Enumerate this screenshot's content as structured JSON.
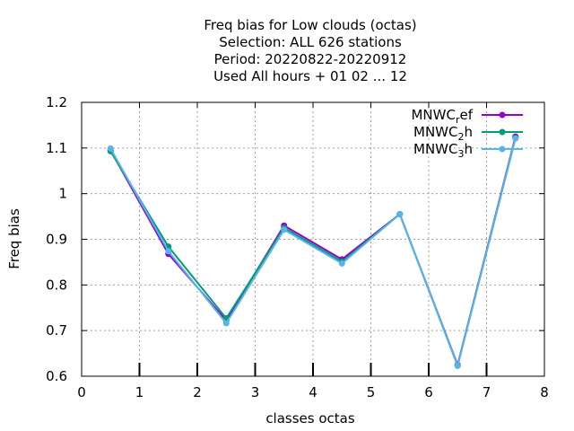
{
  "chart_data": {
    "type": "line",
    "title_lines": [
      "Freq bias  for Low clouds (octas)",
      "Selection: ALL    626 stations",
      "Period: 20220822-20220912",
      "Used  All hours  + 01 02 ... 12"
    ],
    "xlabel": "classes octas",
    "ylabel": "Freq bias",
    "xlim": [
      0,
      8
    ],
    "ylim": [
      0.6,
      1.2
    ],
    "xticks": [
      "0",
      "1",
      "2",
      "3",
      "4",
      "5",
      "6",
      "7",
      "8"
    ],
    "yticks": [
      "0.6",
      "0.7",
      "0.8",
      "0.9",
      "1",
      "1.1",
      "1.2"
    ],
    "grid": true,
    "legend_position": "top-right",
    "x": [
      0.5,
      1.5,
      2.5,
      3.5,
      4.5,
      5.5,
      6.5,
      7.5
    ],
    "series": [
      {
        "name": "MNWC_ref",
        "legend_base": "MNWC",
        "legend_sub": "r",
        "legend_tail": "ef",
        "color": "#9400d3",
        "values": [
          1.095,
          0.868,
          0.722,
          0.93,
          0.856,
          0.955,
          0.625,
          1.125
        ]
      },
      {
        "name": "MNWC_2h",
        "legend_base": "MNWC",
        "legend_sub": "2",
        "legend_tail": "h",
        "color": "#009e73",
        "values": [
          1.093,
          0.884,
          0.727,
          0.925,
          0.851,
          0.955,
          0.623,
          1.122
        ]
      },
      {
        "name": "MNWC_3h",
        "legend_base": "MNWC",
        "legend_sub": "3",
        "legend_tail": "h",
        "color": "#56b4e9",
        "values": [
          1.099,
          0.874,
          0.716,
          0.921,
          0.847,
          0.955,
          0.623,
          1.121
        ]
      }
    ],
    "inner_tick_x": [
      1,
      2,
      3,
      4,
      5,
      6,
      7
    ]
  }
}
